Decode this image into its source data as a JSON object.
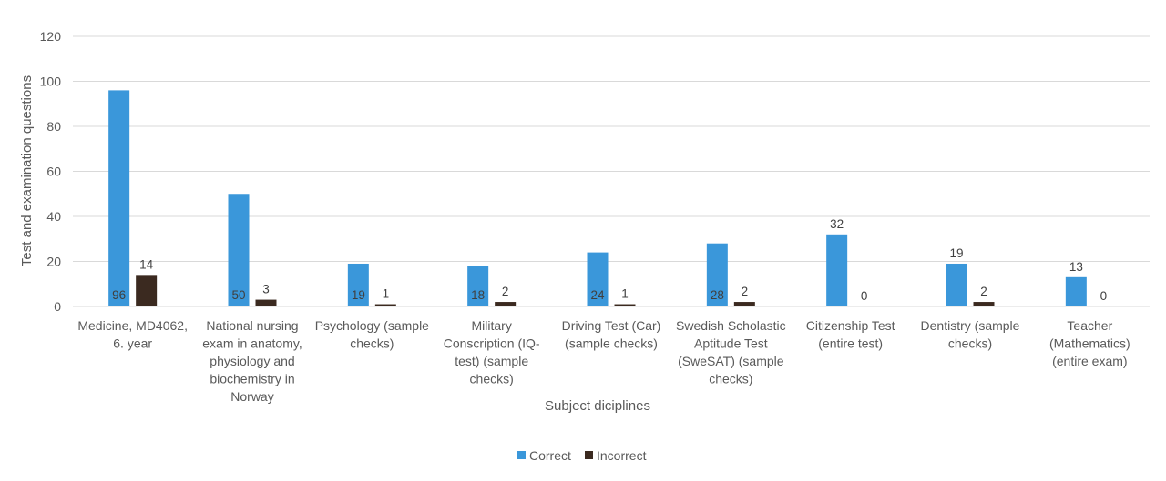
{
  "chart_data": {
    "type": "bar",
    "categories": [
      "Medicine, MD4062, 6. year",
      "National nursing exam in anatomy, physiology and biochemistry in Norway",
      "Psychology (sample checks)",
      "Military Conscription (IQ-test) (sample checks)",
      "Driving Test (Car) (sample checks)",
      "Swedish Scholastic Aptitude Test (SweSAT) (sample checks)",
      "Citizenship Test (entire test)",
      "Dentistry (sample checks)",
      "Teacher (Mathematics) (entire exam)"
    ],
    "category_lines": [
      [
        "Medicine, MD4062,",
        "6. year"
      ],
      [
        "National nursing",
        "exam in anatomy,",
        "physiology and",
        "biochemistry in",
        "Norway"
      ],
      [
        "Psychology (sample",
        "checks)"
      ],
      [
        "Military",
        "Conscription (IQ-",
        "test) (sample",
        "checks)"
      ],
      [
        "Driving Test (Car)",
        "(sample checks)"
      ],
      [
        "Swedish Scholastic",
        "Aptitude Test",
        "(SweSAT) (sample",
        "checks)"
      ],
      [
        "Citizenship Test",
        "(entire test)"
      ],
      [
        "Dentistry (sample",
        "checks)"
      ],
      [
        "Teacher",
        "(Mathematics)",
        "(entire exam)"
      ]
    ],
    "series": [
      {
        "name": "Correct",
        "values": [
          96,
          50,
          19,
          18,
          24,
          28,
          32,
          19,
          13
        ],
        "color": "#3a97da"
      },
      {
        "name": "Incorrect",
        "values": [
          14,
          3,
          1,
          2,
          1,
          2,
          0,
          2,
          0
        ],
        "color": "#3b2a20"
      }
    ],
    "data_label_position": {
      "Correct": [
        "inside-base",
        "inside-base",
        "inside-base",
        "inside-base",
        "inside-base",
        "inside-base",
        "outside-end",
        "outside-end",
        "outside-end"
      ],
      "Incorrect": [
        "outside-end",
        "outside-end",
        "outside-end",
        "outside-end",
        "outside-end",
        "outside-end",
        "outside-end",
        "outside-end",
        "outside-end"
      ]
    },
    "title": "",
    "xlabel": "Subject diciplines",
    "ylabel": "Test and examination questions",
    "ylim": [
      0,
      120
    ],
    "yticks": [
      0,
      20,
      40,
      60,
      80,
      100,
      120
    ],
    "grid": true,
    "legend": "bottom"
  }
}
